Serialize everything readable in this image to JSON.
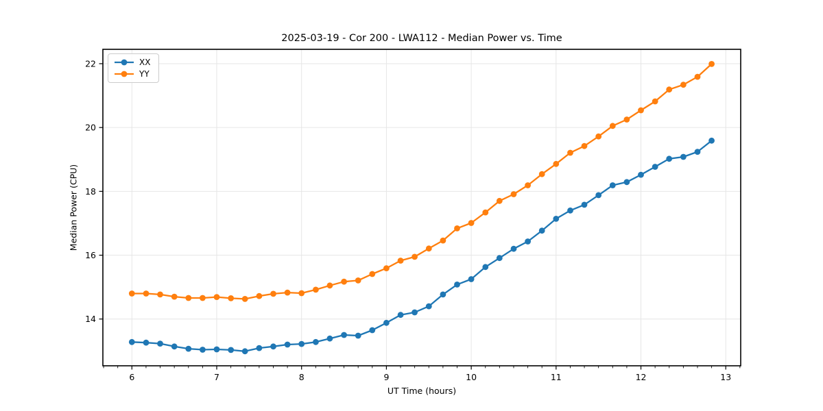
{
  "figure": {
    "title": "2025-03-19 - Cor 200 - LWA112 - Median Power vs. Time",
    "xlabel": "UT Time (hours)",
    "ylabel": "Median Power (CPU)",
    "background_color": "#ffffff",
    "spine_color": "#000000",
    "grid_color": "#e6e6e6"
  },
  "legend": {
    "position": "upper left",
    "items": [
      {
        "label": "XX",
        "color": "#1f77b4"
      },
      {
        "label": "YY",
        "color": "#ff7f0e"
      }
    ]
  },
  "chart_data": {
    "type": "line",
    "title": "2025-03-19 - Cor 200 - LWA112 - Median Power vs. Time",
    "xlabel": "UT Time (hours)",
    "ylabel": "Median Power (CPU)",
    "grid": true,
    "legend_position": "upper left",
    "marker": "o",
    "xlim": [
      5.658,
      13.176
    ],
    "ylim": [
      12.535,
      22.45
    ],
    "xticks": [
      6,
      7,
      8,
      9,
      10,
      11,
      12,
      13
    ],
    "yticks": [
      14,
      16,
      18,
      20,
      22
    ],
    "x_minor_divisions": 6,
    "x": [
      6.0,
      6.167,
      6.333,
      6.5,
      6.667,
      6.833,
      7.0,
      7.167,
      7.333,
      7.5,
      7.667,
      7.833,
      8.0,
      8.167,
      8.333,
      8.5,
      8.667,
      8.833,
      9.0,
      9.167,
      9.333,
      9.5,
      9.667,
      9.833,
      10.0,
      10.167,
      10.333,
      10.5,
      10.667,
      10.833,
      11.0,
      11.167,
      11.333,
      11.5,
      11.667,
      11.833,
      12.0,
      12.167,
      12.333,
      12.5,
      12.667,
      12.833
    ],
    "series": [
      {
        "name": "XX",
        "color": "#1f77b4",
        "values": [
          13.28,
          13.26,
          13.23,
          13.14,
          13.07,
          13.04,
          13.05,
          13.03,
          12.99,
          13.09,
          13.14,
          13.2,
          13.22,
          13.28,
          13.39,
          13.5,
          13.48,
          13.65,
          13.88,
          14.13,
          14.21,
          14.4,
          14.77,
          15.08,
          15.25,
          15.63,
          15.91,
          16.2,
          16.43,
          16.77,
          17.14,
          17.4,
          17.58,
          17.88,
          18.19,
          18.29,
          18.52,
          18.77,
          19.02,
          19.08,
          19.24,
          19.59
        ]
      },
      {
        "name": "YY",
        "color": "#ff7f0e",
        "values": [
          14.8,
          14.8,
          14.77,
          14.7,
          14.66,
          14.66,
          14.69,
          14.65,
          14.63,
          14.72,
          14.79,
          14.83,
          14.81,
          14.92,
          15.05,
          15.17,
          15.21,
          15.41,
          15.59,
          15.83,
          15.95,
          16.21,
          16.46,
          16.84,
          17.01,
          17.34,
          17.7,
          17.91,
          18.19,
          18.54,
          18.86,
          19.21,
          19.42,
          19.72,
          20.05,
          20.25,
          20.54,
          20.82,
          21.19,
          21.34,
          21.59,
          21.99
        ]
      }
    ]
  }
}
